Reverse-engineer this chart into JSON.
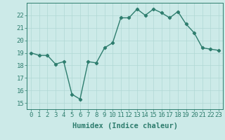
{
  "x": [
    0,
    1,
    2,
    3,
    4,
    5,
    6,
    7,
    8,
    9,
    10,
    11,
    12,
    13,
    14,
    15,
    16,
    17,
    18,
    19,
    20,
    21,
    22,
    23
  ],
  "y": [
    19.0,
    18.8,
    18.8,
    18.1,
    18.3,
    15.7,
    15.3,
    18.3,
    18.2,
    19.4,
    19.8,
    21.8,
    21.8,
    22.5,
    22.0,
    22.5,
    22.2,
    21.8,
    22.3,
    21.3,
    20.6,
    19.4,
    19.3,
    19.2
  ],
  "xlim": [
    -0.5,
    23.5
  ],
  "ylim": [
    14.5,
    23.0
  ],
  "yticks": [
    15,
    16,
    17,
    18,
    19,
    20,
    21,
    22
  ],
  "xticks": [
    0,
    1,
    2,
    3,
    4,
    5,
    6,
    7,
    8,
    9,
    10,
    11,
    12,
    13,
    14,
    15,
    16,
    17,
    18,
    19,
    20,
    21,
    22,
    23
  ],
  "xlabel": "Humidex (Indice chaleur)",
  "line_color": "#2e7d6e",
  "marker": "D",
  "marker_size": 2.2,
  "line_width": 1.0,
  "bg_color": "#cceae8",
  "grid_color": "#b0d8d4",
  "tick_color": "#2e7d6e",
  "label_color": "#2e7d6e",
  "xlabel_fontsize": 7.5,
  "tick_fontsize": 6.5
}
